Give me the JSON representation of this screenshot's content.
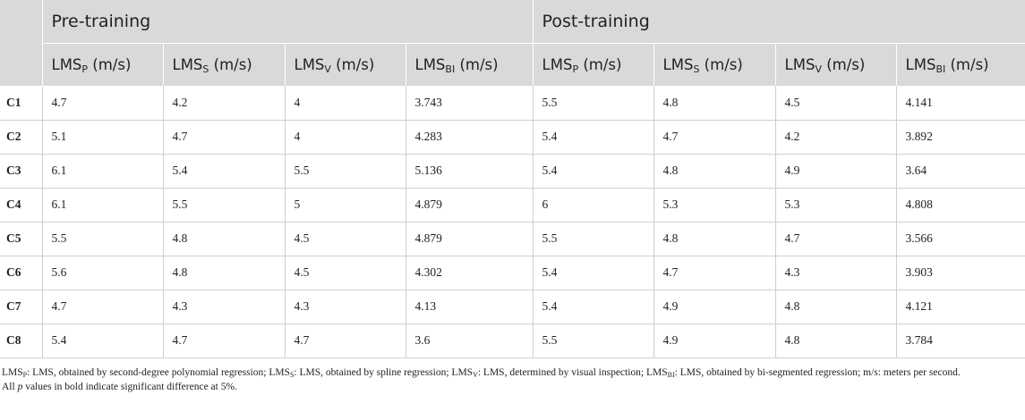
{
  "table": {
    "group_headers": [
      "Pre-training",
      "Post-training"
    ],
    "column_headers": [
      {
        "base": "LMS",
        "sub": "P",
        "unit": " (m/s)"
      },
      {
        "base": "LMS",
        "sub": "S",
        "unit": " (m/s)"
      },
      {
        "base": "LMS",
        "sub": "V",
        "unit": " (m/s)"
      },
      {
        "base": "LMS",
        "sub": "BI",
        "unit": " (m/s)"
      },
      {
        "base": "LMS",
        "sub": "P",
        "unit": " (m/s)"
      },
      {
        "base": "LMS",
        "sub": "S",
        "unit": " (m/s)"
      },
      {
        "base": "LMS",
        "sub": "V",
        "unit": " (m/s)"
      },
      {
        "base": "LMS",
        "sub": "BI",
        "unit": " (m/s)"
      }
    ],
    "rows": [
      {
        "label": "C1",
        "values": [
          "4.7",
          "4.2",
          "4",
          "3.743",
          "5.5",
          "4.8",
          "4.5",
          "4.141"
        ]
      },
      {
        "label": "C2",
        "values": [
          "5.1",
          "4.7",
          "4",
          "4.283",
          "5.4",
          "4.7",
          "4.2",
          "3.892"
        ]
      },
      {
        "label": "C3",
        "values": [
          "6.1",
          "5.4",
          "5.5",
          "5.136",
          "5.4",
          "4.8",
          "4.9",
          "3.64"
        ]
      },
      {
        "label": "C4",
        "values": [
          "6.1",
          "5.5",
          "5",
          "4.879",
          "6",
          "5.3",
          "5.3",
          "4.808"
        ]
      },
      {
        "label": "C5",
        "values": [
          "5.5",
          "4.8",
          "4.5",
          "4.879",
          "5.5",
          "4.8",
          "4.7",
          "3.566"
        ]
      },
      {
        "label": "C6",
        "values": [
          "5.6",
          "4.8",
          "4.5",
          "4.302",
          "5.4",
          "4.7",
          "4.3",
          "3.903"
        ]
      },
      {
        "label": "C7",
        "values": [
          "4.7",
          "4.3",
          "4.3",
          "4.13",
          "5.4",
          "4.9",
          "4.8",
          "4.121"
        ]
      },
      {
        "label": "C8",
        "values": [
          "5.4",
          "4.7",
          "4.7",
          "3.6",
          "5.5",
          "4.9",
          "4.8",
          "3.784"
        ]
      }
    ]
  },
  "footnotes": {
    "line1": [
      {
        "base": "LMS",
        "sub": "P",
        "text": ": LMS, obtained by second-degree polynomial regression; "
      },
      {
        "base": "LMS",
        "sub": "S",
        "text": ": LMS, obtained by spline regression; "
      },
      {
        "base": "LMS",
        "sub": "V",
        "text": ": LMS, determined by visual inspection; "
      },
      {
        "base": "LMS",
        "sub": "BI",
        "text": ": LMS, obtained by bi-segmented regression; m/s: meters per second."
      }
    ],
    "line2_before": "All ",
    "line2_italic": "p",
    "line2_after": " values in bold indicate significant difference at 5%."
  }
}
